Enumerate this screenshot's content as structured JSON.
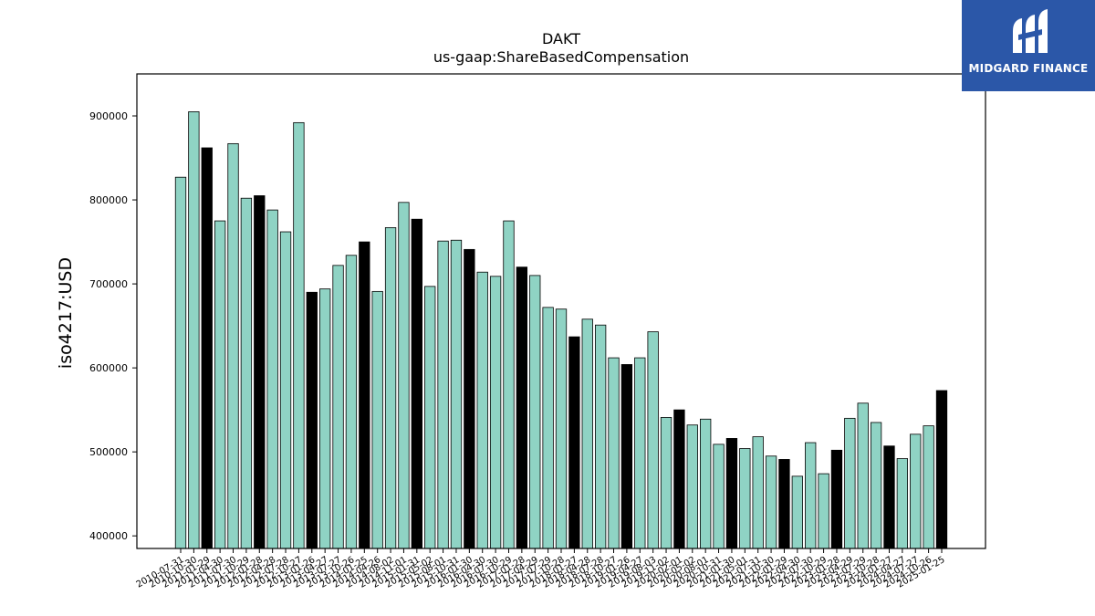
{
  "brand": {
    "name": "MIDGARD FINANCE",
    "color": "#2b57a8"
  },
  "chart_data": {
    "type": "bar",
    "title": "DAKT",
    "subtitle": "us-gaap:ShareBasedCompensation",
    "xlabel": "",
    "ylabel": "iso4217:USD",
    "ylim": [
      385000,
      950000
    ],
    "yticks": [
      400000,
      500000,
      600000,
      700000,
      800000,
      900000
    ],
    "grid": false,
    "colors": {
      "default": "#8fd3c4",
      "highlight": "#000000"
    },
    "categories": [
      "2010-07-31",
      "2010-10-30",
      "2011-01-29",
      "2011-04-30",
      "2011-07-30",
      "2011-10-29",
      "2012-01-28",
      "2012-04-28",
      "2012-07-28",
      "2012-10-27",
      "2013-01-26",
      "2013-04-27",
      "2013-07-27",
      "2013-10-26",
      "2014-01-25",
      "2014-04-26",
      "2014-08-02",
      "2014-11-01",
      "2015-01-31",
      "2015-05-02",
      "2015-08-01",
      "2015-10-31",
      "2016-01-30",
      "2016-04-30",
      "2016-07-30",
      "2016-10-29",
      "2017-01-28",
      "2017-04-29",
      "2017-07-29",
      "2017-10-28",
      "2018-01-27",
      "2018-04-28",
      "2018-07-28",
      "2018-10-27",
      "2019-01-26",
      "2019-04-27",
      "2019-08-03",
      "2019-11-02",
      "2020-02-01",
      "2020-05-02",
      "2020-08-01",
      "2020-10-31",
      "2021-01-30",
      "2021-05-01",
      "2021-07-31",
      "2021-10-30",
      "2022-01-29",
      "2022-04-30",
      "2022-07-30",
      "2022-10-29",
      "2023-01-28",
      "2023-04-29",
      "2023-07-29",
      "2023-10-28",
      "2024-01-27",
      "2024-04-27",
      "2024-07-27",
      "2024-10-26",
      "2025-01-25"
    ],
    "values": [
      827000,
      905000,
      862000,
      775000,
      867000,
      802000,
      805000,
      788000,
      762000,
      892000,
      690000,
      694000,
      722000,
      734000,
      750000,
      691000,
      767000,
      797000,
      777000,
      697000,
      751000,
      752000,
      741000,
      714000,
      709000,
      775000,
      720000,
      710000,
      672000,
      670000,
      637000,
      658000,
      651000,
      612000,
      604000,
      612000,
      643000,
      541000,
      550000,
      532000,
      539000,
      509000,
      516000,
      504000,
      518000,
      495000,
      491000,
      471000,
      511000,
      474000,
      502000,
      540000,
      558000,
      535000,
      507000,
      492000,
      521000,
      531000,
      573000
    ],
    "highlight": [
      false,
      false,
      true,
      false,
      false,
      false,
      true,
      false,
      false,
      false,
      true,
      false,
      false,
      false,
      true,
      false,
      false,
      false,
      true,
      false,
      false,
      false,
      true,
      false,
      false,
      false,
      true,
      false,
      false,
      false,
      true,
      false,
      false,
      false,
      true,
      false,
      false,
      false,
      true,
      false,
      false,
      false,
      true,
      false,
      false,
      false,
      true,
      false,
      false,
      false,
      true,
      false,
      false,
      false,
      true,
      false,
      false,
      false,
      true
    ]
  }
}
